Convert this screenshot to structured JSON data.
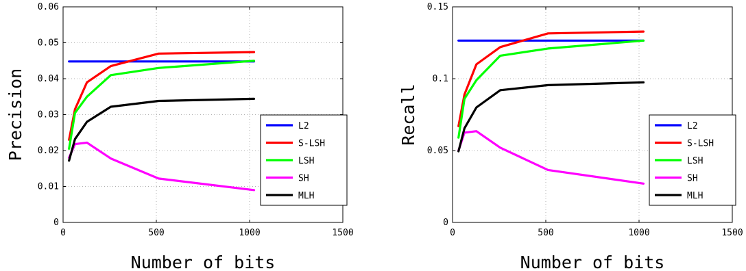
{
  "chart_data": [
    {
      "type": "line",
      "title": "",
      "xlabel": "Number of bits",
      "ylabel": "Precision",
      "xlim": [
        0,
        1500
      ],
      "ylim": [
        0,
        0.06
      ],
      "xticks": [
        0,
        500,
        1000,
        1500
      ],
      "xtick_labels": [
        "0",
        "500",
        "1000",
        "1500"
      ],
      "yticks": [
        0,
        0.01,
        0.02,
        0.03,
        0.04,
        0.05,
        0.06
      ],
      "ytick_labels": [
        "0",
        "0.01",
        "0.02",
        "0.03",
        "0.04",
        "0.05",
        "0.06"
      ],
      "grid": true,
      "legend_position": "bottom-right",
      "series": [
        {
          "name": "L2",
          "color": "#0000ff",
          "x": [
            32,
            1024
          ],
          "values": [
            0.0448,
            0.0448
          ]
        },
        {
          "name": "S-LSH",
          "color": "#ff0000",
          "x": [
            32,
            64,
            128,
            256,
            512,
            1024
          ],
          "values": [
            0.023,
            0.0315,
            0.039,
            0.0435,
            0.047,
            0.0474
          ]
        },
        {
          "name": "LSH",
          "color": "#00ff00",
          "x": [
            32,
            64,
            128,
            256,
            512,
            1024
          ],
          "values": [
            0.0205,
            0.0305,
            0.035,
            0.041,
            0.043,
            0.045
          ]
        },
        {
          "name": "SH",
          "color": "#ff00ff",
          "x": [
            32,
            64,
            128,
            256,
            512,
            1024
          ],
          "values": [
            0.018,
            0.0218,
            0.0222,
            0.0178,
            0.0122,
            0.009
          ]
        },
        {
          "name": "MLH",
          "color": "#000000",
          "x": [
            32,
            64,
            128,
            256,
            512,
            1024
          ],
          "values": [
            0.0172,
            0.0232,
            0.028,
            0.0322,
            0.0338,
            0.0344
          ]
        }
      ]
    },
    {
      "type": "line",
      "title": "",
      "xlabel": "Number of bits",
      "ylabel": "Recall",
      "xlim": [
        0,
        1500
      ],
      "ylim": [
        0,
        0.15
      ],
      "xticks": [
        0,
        500,
        1000,
        1500
      ],
      "xtick_labels": [
        "0",
        "500",
        "1000",
        "1500"
      ],
      "yticks": [
        0,
        0.05,
        0.1,
        0.15
      ],
      "ytick_labels": [
        "0",
        "0.05",
        "0.1",
        "0.15"
      ],
      "grid": true,
      "legend_position": "bottom-right",
      "series": [
        {
          "name": "L2",
          "color": "#0000ff",
          "x": [
            32,
            1024
          ],
          "values": [
            0.1265,
            0.1265
          ]
        },
        {
          "name": "S-LSH",
          "color": "#ff0000",
          "x": [
            32,
            64,
            128,
            256,
            512,
            1024
          ],
          "values": [
            0.067,
            0.089,
            0.11,
            0.122,
            0.1315,
            0.1328
          ]
        },
        {
          "name": "LSH",
          "color": "#00ff00",
          "x": [
            32,
            64,
            128,
            256,
            512,
            1024
          ],
          "values": [
            0.059,
            0.086,
            0.099,
            0.116,
            0.121,
            0.1265
          ]
        },
        {
          "name": "SH",
          "color": "#ff00ff",
          "x": [
            32,
            64,
            128,
            256,
            512,
            1024
          ],
          "values": [
            0.05,
            0.0625,
            0.0635,
            0.052,
            0.0365,
            0.027
          ]
        },
        {
          "name": "MLH",
          "color": "#000000",
          "x": [
            32,
            64,
            128,
            256,
            512,
            1024
          ],
          "values": [
            0.0495,
            0.0655,
            0.08,
            0.092,
            0.0955,
            0.0975
          ]
        }
      ]
    }
  ]
}
